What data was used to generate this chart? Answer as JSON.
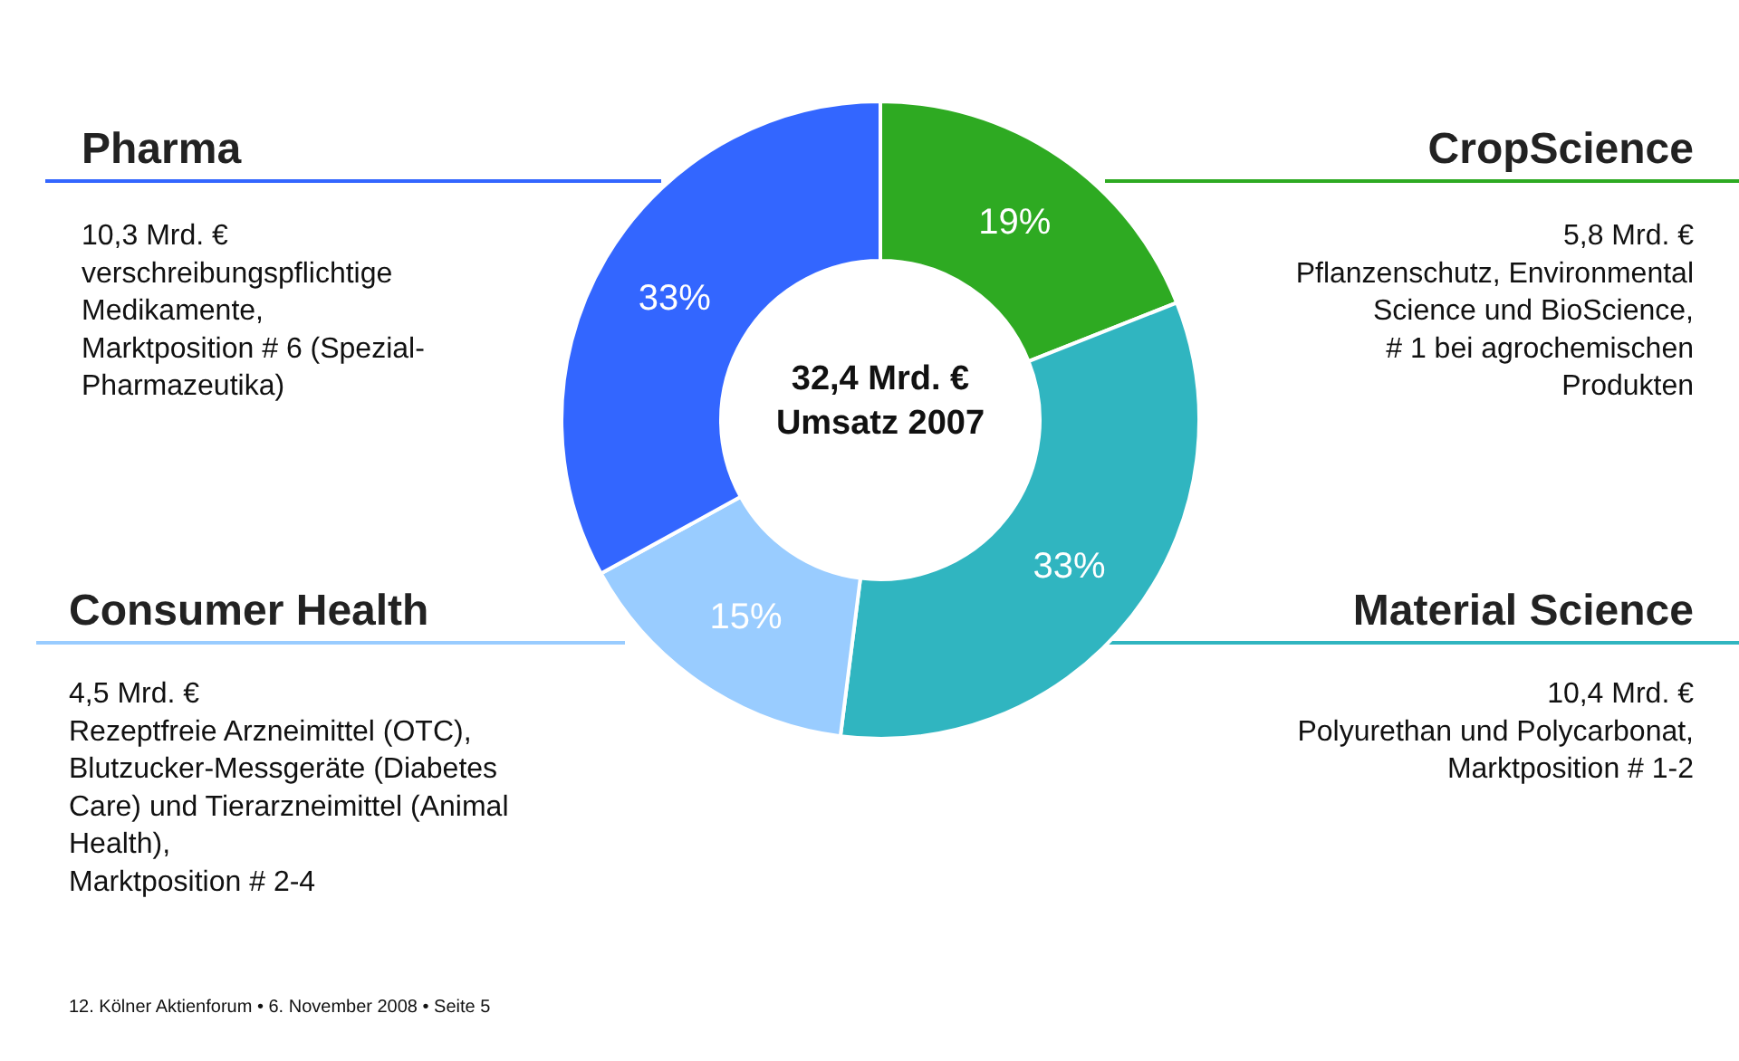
{
  "chart_data": {
    "type": "donut",
    "categories": [
      "CropScience",
      "Material Science",
      "Consumer Health",
      "Pharma"
    ],
    "values": [
      19,
      33,
      15,
      33
    ],
    "value_labels": [
      "19%",
      "33%",
      "15%",
      "33%"
    ],
    "colors": [
      "#2eaa22",
      "#30b5c0",
      "#99ccff",
      "#3366ff"
    ],
    "annotations": [
      "10,3 Mrd. €\nverschreibungspflichtige\nMedikamente,\nMarktposition # 6 (Spezial-\nPharmazeutika)",
      "5,8 Mrd. €\nPflanzenschutz, Environmental\nScience und BioScience,\n# 1 bei agrochemischen\nProdukten",
      "4,5 Mrd. €\nRezeptfreie Arzneimittel (OTC),\nBlutzucker-Messgeräte (Diabetes\nCare) und Tierarzneimittel (Animal\nHealth),\nMarktposition # 2-4",
      "10,4 Mrd. €\nPolyurethan und Polycarbonat,\nMarktposition # 1-2",
      "32,4 Mrd. €\nUmsatz 2007",
      "12. Kölner Aktienforum • 6. November 2008 • Seite 5"
    ]
  }
}
